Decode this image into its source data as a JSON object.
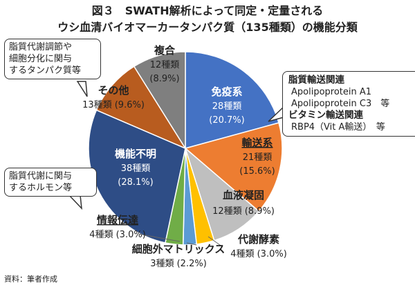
{
  "figure": {
    "title_line1": "図３　SWATH解析によって同定・定量される",
    "title_line2": "ウシ血清バイオマーカータンパク質（135種類）の機能分類",
    "source": "資料：筆者作成"
  },
  "chart_data": {
    "type": "pie",
    "total": 135,
    "slices": [
      {
        "name": "免疫系",
        "count_label": "28種類",
        "pct_label": "(20.7%)",
        "value": 28,
        "color": "#4472C4"
      },
      {
        "name": "輸送系",
        "count_label": "21種類",
        "pct_label": "(15.6%)",
        "value": 21,
        "color": "#ED7D31"
      },
      {
        "name": "血液凝固",
        "count_label": "12種類 (8.9%)",
        "pct_label": "",
        "value": 12,
        "color": "#BFBFBF"
      },
      {
        "name": "代謝酵素",
        "count_label": "4種類 (3.0%)",
        "pct_label": "",
        "value": 4,
        "color": "#FFC000"
      },
      {
        "name": "細胞外マトリックス",
        "count_label": "3種類 (2.2%)",
        "pct_label": "",
        "value": 3,
        "color": "#5B9BD5"
      },
      {
        "name": "情報伝達",
        "count_label": "4種類 (3.0%)",
        "pct_label": "",
        "value": 4,
        "color": "#70AD47"
      },
      {
        "name": "機能不明",
        "count_label": "38種類",
        "pct_label": "(28.1%)",
        "value": 38,
        "color": "#2E4D86"
      },
      {
        "name": "その他",
        "count_label": "13種類 (9.6%)",
        "pct_label": "",
        "value": 13,
        "color": "#B85C1F"
      },
      {
        "name": "複合",
        "count_label": "12種類",
        "pct_label": "(8.9%)",
        "value": 12,
        "color": "#7F7F7F"
      }
    ]
  },
  "callouts": {
    "other": [
      "脂質代謝調節や",
      "細胞分化に関与",
      "するタンパク質等"
    ],
    "function_unknown": [
      "脂質代謝に関与",
      "するホルモン等"
    ],
    "transport": {
      "heading1": "脂質輸送関連",
      "line1": "Apolipoprotein A1",
      "line2": "Apolipoprotein C3　等",
      "heading2": "ビタミン輸送関連",
      "line3": "RBP4（Vit A輸送）　等"
    }
  }
}
